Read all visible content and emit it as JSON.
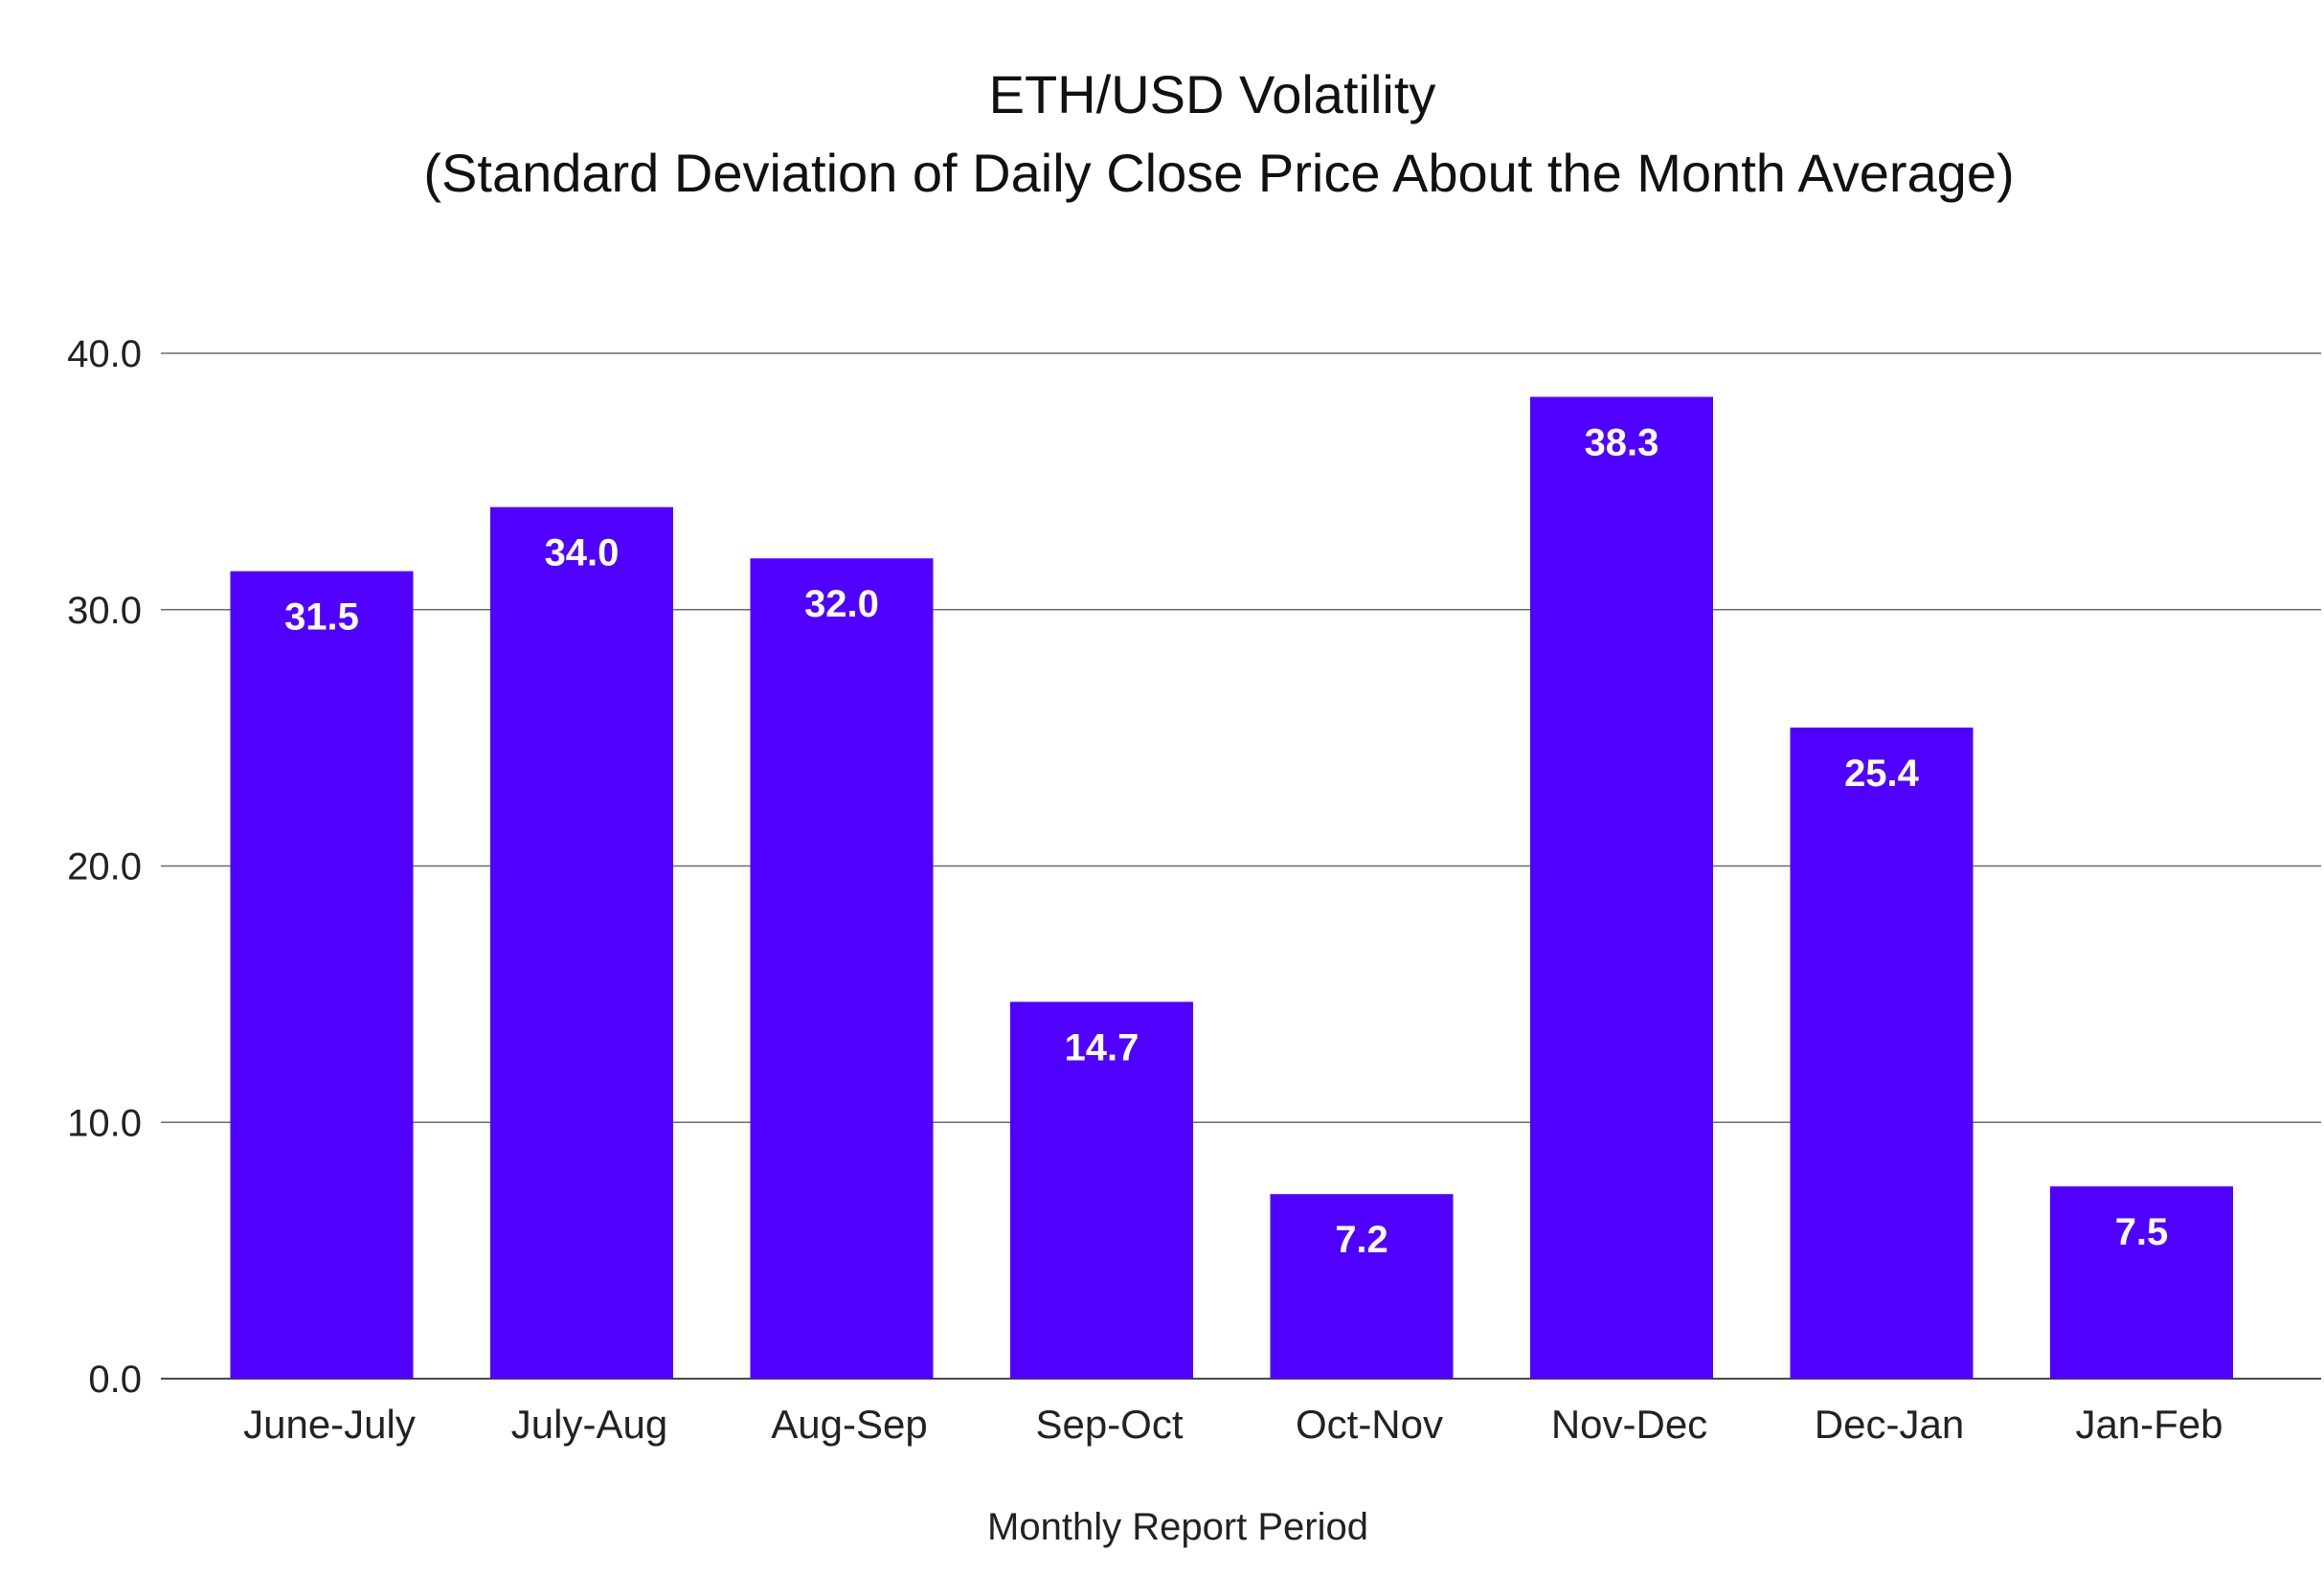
{
  "chart_data": {
    "type": "bar",
    "title": "ETH/USD Volatility",
    "subtitle": "(Standard Deviation of Daily Close Price About the Month Average)",
    "xlabel": "Monthly Report Period",
    "ylabel": "",
    "categories": [
      "June-July",
      "July-Aug",
      "Aug-Sep",
      "Sep-Oct",
      "Oct-Nov",
      "Nov-Dec",
      "Dec-Jan",
      "Jan-Feb"
    ],
    "values": [
      31.5,
      34.0,
      32.0,
      14.7,
      7.2,
      38.3,
      25.4,
      7.5
    ],
    "data_labels": [
      "31.5",
      "34.0",
      "32.0",
      "14.7",
      "7.2",
      "38.3",
      "25.4",
      "7.5"
    ],
    "ylim": [
      0,
      40
    ],
    "yticks": [
      0,
      10,
      20,
      30,
      40
    ],
    "ytick_labels": [
      "0.0",
      "10.0",
      "20.0",
      "30.0",
      "40.0"
    ],
    "grid": true,
    "legend": "none",
    "bar_color": "#4f00ff"
  }
}
